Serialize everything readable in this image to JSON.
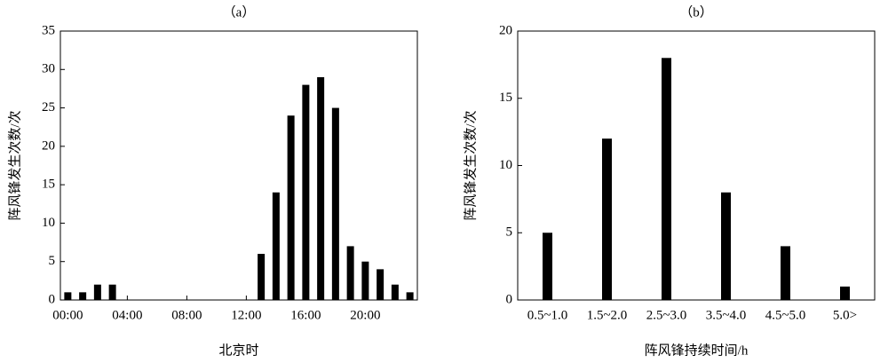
{
  "chart_data": [
    {
      "type": "bar",
      "title": "（a）",
      "x_label": "北京时",
      "y_label": "阵风锋发生次数/次",
      "categories": [
        "00:00",
        null,
        null,
        null,
        "04:00",
        null,
        null,
        null,
        "08:00",
        null,
        null,
        null,
        "12:00",
        null,
        null,
        null,
        "16:00",
        null,
        null,
        null,
        "20:00",
        null,
        null,
        null
      ],
      "values": [
        1,
        1,
        2,
        2,
        0,
        0,
        0,
        0,
        0,
        0,
        0,
        0,
        0,
        6,
        14,
        24,
        28,
        29,
        25,
        7,
        5,
        4,
        2,
        1
      ],
      "color": "#000000",
      "ylim": [
        0,
        35
      ],
      "yticks": [
        0,
        5,
        10,
        15,
        20,
        25,
        30,
        35
      ]
    },
    {
      "type": "bar",
      "title": "（b）",
      "x_label": "阵风锋持续时间/h",
      "y_label": "阵风锋发生次数/次",
      "categories": [
        "0.5~1.0",
        "1.5~2.0",
        "2.5~3.0",
        "3.5~4.0",
        "4.5~5.0",
        "5.0>"
      ],
      "values": [
        5,
        12,
        18,
        8,
        4,
        1
      ],
      "color": "#000000",
      "ylim": [
        0,
        20
      ],
      "yticks": [
        0,
        5,
        10,
        15,
        20
      ]
    }
  ]
}
